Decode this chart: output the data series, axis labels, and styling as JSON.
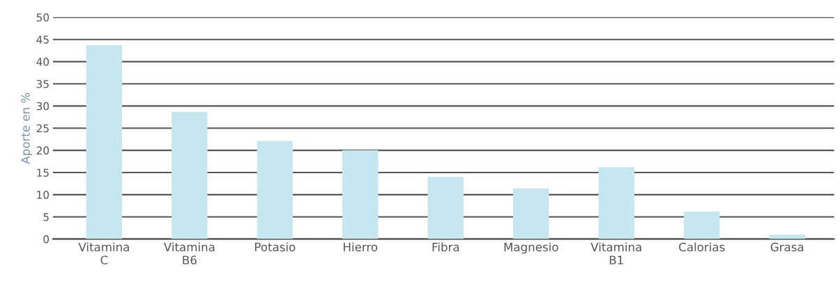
{
  "chart_data": {
    "type": "bar",
    "ylabel": "Aporte en %",
    "categories": [
      "Vitamina\nC",
      "Vitamina\nB6",
      "Potasio",
      "Hierro",
      "Fibra",
      "Magnesio",
      "Vitamina\nB1",
      "Calorias",
      "Grasa"
    ],
    "values": [
      43.7,
      28.7,
      22.1,
      20,
      14,
      11.4,
      16.2,
      6.2,
      1
    ],
    "color": "#c6e7ef",
    "ylim": [
      0,
      50
    ],
    "yticks": [
      0,
      5,
      10,
      15,
      20,
      25,
      30,
      35,
      40,
      45,
      50
    ],
    "grid": "y",
    "legend": false
  }
}
